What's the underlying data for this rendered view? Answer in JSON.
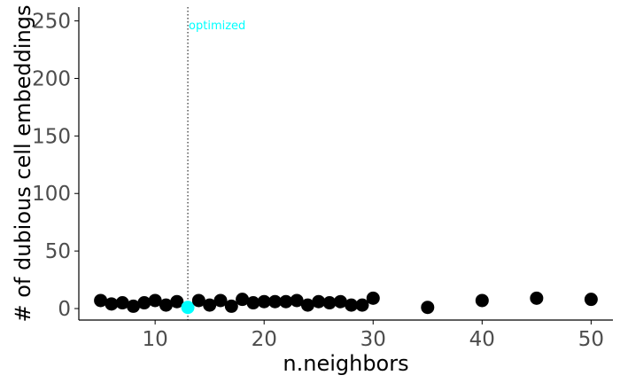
{
  "chart_data": {
    "type": "scatter",
    "title": "",
    "xlabel": "n.neighbors",
    "ylabel": "# of dubious cell embeddings",
    "xlim": [
      3,
      52
    ],
    "ylim": [
      -10,
      262
    ],
    "x_ticks": [
      10,
      20,
      30,
      40,
      50
    ],
    "y_ticks": [
      0,
      50,
      100,
      150,
      200,
      250
    ],
    "grid": false,
    "legend": "none",
    "points": [
      {
        "x": 5,
        "y": 7
      },
      {
        "x": 6,
        "y": 4
      },
      {
        "x": 7,
        "y": 5
      },
      {
        "x": 8,
        "y": 2
      },
      {
        "x": 9,
        "y": 5
      },
      {
        "x": 10,
        "y": 7
      },
      {
        "x": 11,
        "y": 3
      },
      {
        "x": 12,
        "y": 6
      },
      {
        "x": 13,
        "y": 1,
        "highlight": true
      },
      {
        "x": 14,
        "y": 7
      },
      {
        "x": 15,
        "y": 3
      },
      {
        "x": 16,
        "y": 7
      },
      {
        "x": 17,
        "y": 2
      },
      {
        "x": 18,
        "y": 8
      },
      {
        "x": 19,
        "y": 5
      },
      {
        "x": 20,
        "y": 6
      },
      {
        "x": 21,
        "y": 6
      },
      {
        "x": 22,
        "y": 6
      },
      {
        "x": 23,
        "y": 7
      },
      {
        "x": 24,
        "y": 3
      },
      {
        "x": 25,
        "y": 6
      },
      {
        "x": 26,
        "y": 5
      },
      {
        "x": 27,
        "y": 6
      },
      {
        "x": 28,
        "y": 3
      },
      {
        "x": 29,
        "y": 3
      },
      {
        "x": 30,
        "y": 9
      },
      {
        "x": 35,
        "y": 1
      },
      {
        "x": 40,
        "y": 7
      },
      {
        "x": 45,
        "y": 9
      },
      {
        "x": 50,
        "y": 8
      }
    ],
    "reference_line": {
      "x": 13,
      "label": "optimized",
      "style": "dotted"
    },
    "colors": {
      "points": "#000000",
      "highlight": "#00ffff",
      "annotation": "#00ffff",
      "axis": "#000000",
      "ticks": "#4d4d4d"
    }
  }
}
